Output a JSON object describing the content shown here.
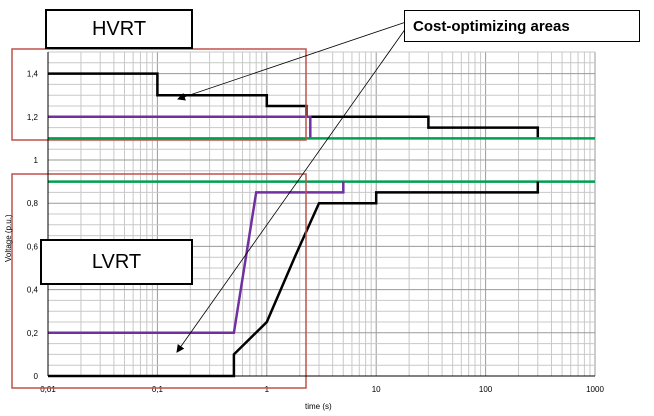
{
  "chart_data": {
    "type": "line",
    "title": "",
    "xlabel": "time (s)",
    "ylabel": "Voltage (p.u.)",
    "x_scale": "log",
    "xlim": [
      0.01,
      1000
    ],
    "ylim": [
      0,
      1.5
    ],
    "x_ticks": [
      0.01,
      0.1,
      1,
      10,
      100,
      1000
    ],
    "x_tick_labels": [
      "0,01",
      "0,1",
      "1",
      "10",
      "100",
      "1000"
    ],
    "y_ticks": [
      0,
      0.2,
      0.4,
      0.6,
      0.8,
      1.0,
      1.2,
      1.4
    ],
    "y_tick_labels": [
      "0",
      "0,2",
      "0,4",
      "0,6",
      "0,8",
      "1",
      "1,2",
      "1,4"
    ],
    "grid": true,
    "series": [
      {
        "color": "#000000",
        "points": [
          [
            0.01,
            1.4
          ],
          [
            0.1,
            1.4
          ],
          [
            0.1,
            1.3
          ],
          [
            1,
            1.3
          ],
          [
            1,
            1.25
          ],
          [
            2.3,
            1.25
          ],
          [
            2.3,
            1.2
          ],
          [
            30,
            1.2
          ],
          [
            30,
            1.15
          ],
          [
            300,
            1.15
          ],
          [
            300,
            1.1
          ]
        ]
      },
      {
        "color": "#7030a0",
        "points": [
          [
            0.01,
            1.2
          ],
          [
            2.5,
            1.2
          ],
          [
            2.5,
            1.1
          ]
        ]
      },
      {
        "color": "#00a050",
        "points": [
          [
            0.01,
            1.1
          ],
          [
            1000,
            1.1
          ]
        ]
      },
      {
        "color": "#00a050",
        "points": [
          [
            0.01,
            0.9
          ],
          [
            1000,
            0.9
          ]
        ]
      },
      {
        "color": "#7030a0",
        "points": [
          [
            0.01,
            0.2
          ],
          [
            0.5,
            0.2
          ],
          [
            0.8,
            0.85
          ],
          [
            5,
            0.85
          ],
          [
            5,
            0.9
          ]
        ]
      },
      {
        "color": "#000000",
        "points": [
          [
            0.01,
            0
          ],
          [
            0.5,
            0
          ],
          [
            0.5,
            0.1
          ],
          [
            1,
            0.25
          ],
          [
            1.8,
            0.55
          ],
          [
            3,
            0.8
          ],
          [
            10,
            0.8
          ],
          [
            10,
            0.85
          ],
          [
            300,
            0.85
          ],
          [
            300,
            0.9
          ]
        ]
      }
    ],
    "annotations": {
      "hvrt_label": "HVRT",
      "lvrt_label": "LVRT",
      "callout": "Cost-optimizing areas"
    },
    "highlight_color": "#c0504d"
  }
}
